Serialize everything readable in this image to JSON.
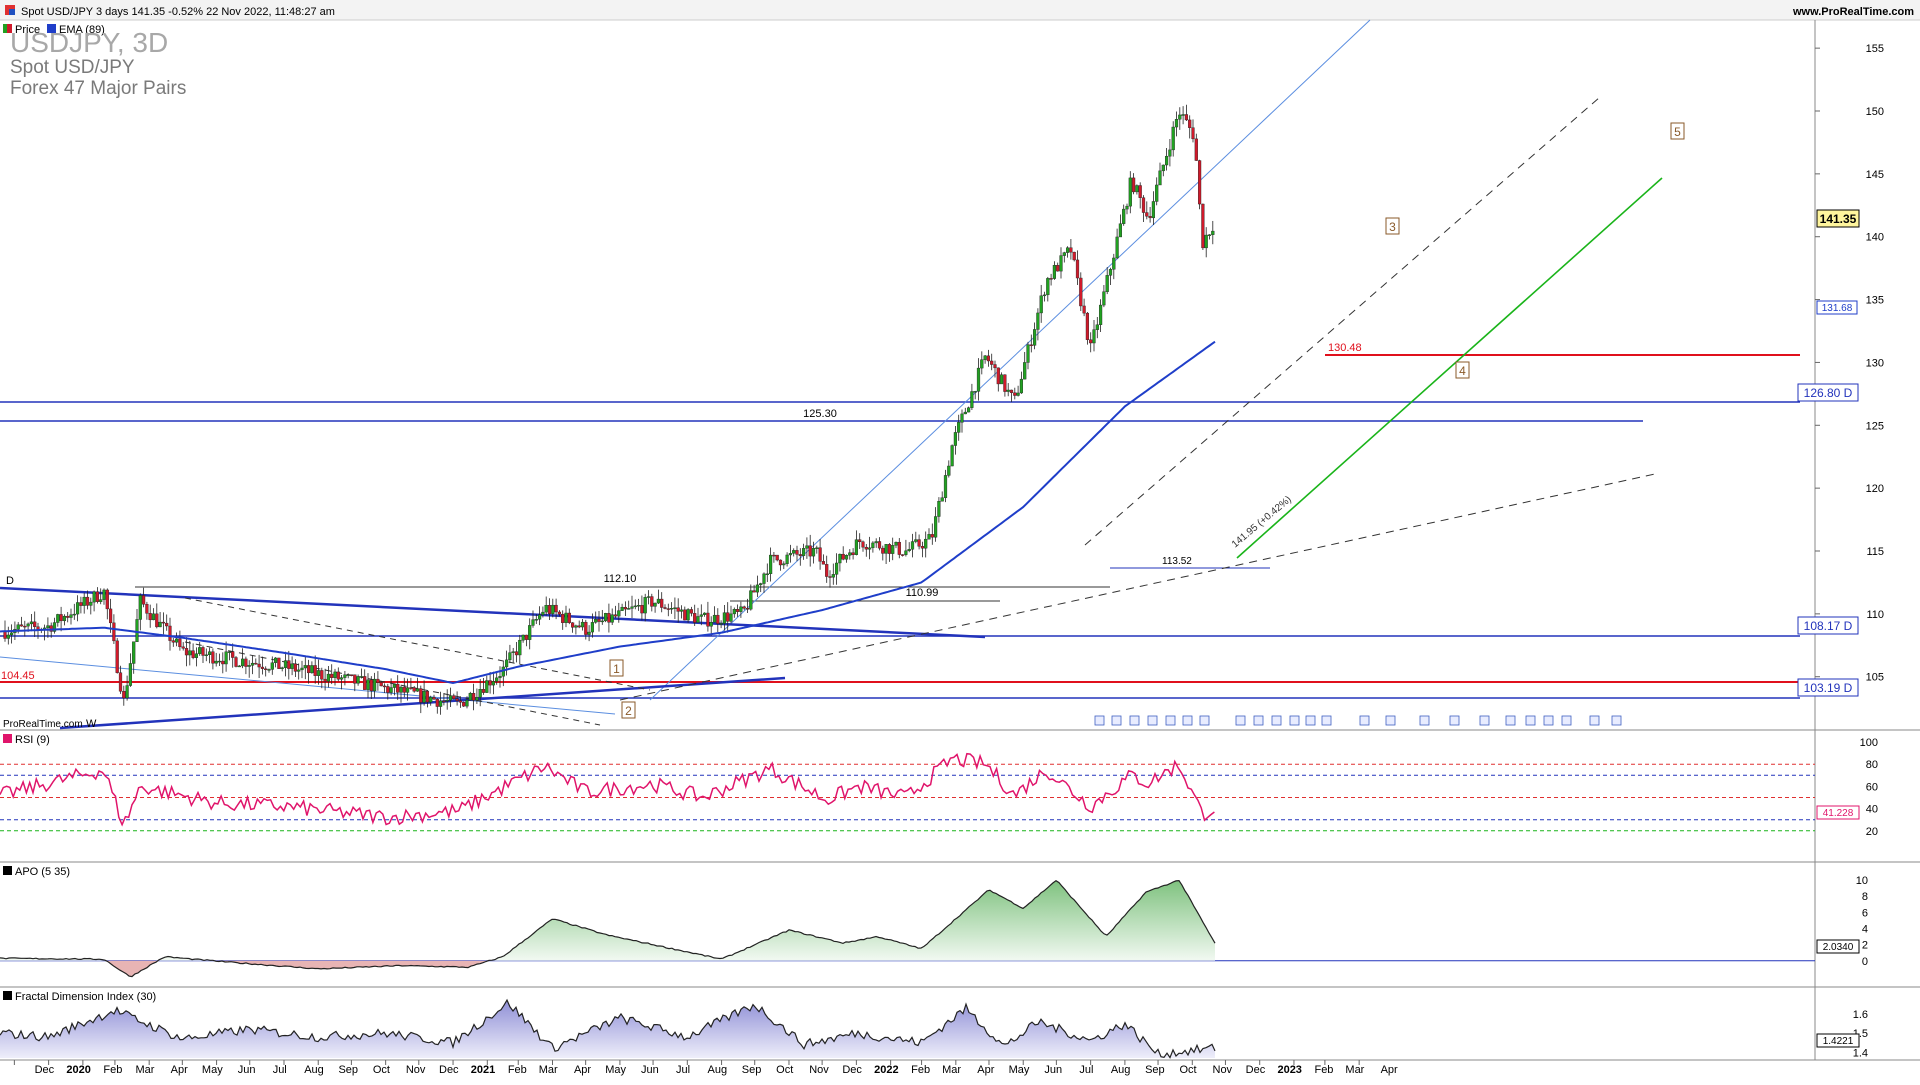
{
  "header": {
    "title": "Spot USD/JPY 3 days 141.35 -0.52% 22 Nov 2022, 11:48:27 am",
    "website": "www.ProRealTime.com",
    "legend_price": "Price",
    "legend_ema": "EMA (89)"
  },
  "watermark": {
    "line1": "USDJPY, 3D",
    "line2": "Spot USD/JPY",
    "line3": "Forex 47 Major Pairs"
  },
  "brand": "ProRealTime.com",
  "colors": {
    "up": "#21a121",
    "down": "#d01a2b",
    "ema": "#1f3ec9",
    "red_line": "#e0101c",
    "blue_line": "#2233bb",
    "trend_green": "#1ab41a",
    "rsi": "#e0156b",
    "apo_fill": "#b5dbb5",
    "apo_neg": "#e8b4b4",
    "fdi_fill": "#b9b9e3"
  },
  "chart_data": [
    {
      "type": "candlestick",
      "title": "USDJPY, 3D",
      "ylim": [
        101,
        157
      ],
      "y_ticks": [
        "155",
        "150",
        "145",
        "140",
        "135",
        "130",
        "125",
        "120",
        "115",
        "110",
        "105"
      ],
      "last_price": "141.35",
      "ema_label": "131.68",
      "ema_anchors": [
        [
          "2019-11-18",
          108.6
        ],
        [
          "2020-02-20",
          108.9
        ],
        [
          "2020-05-01",
          108.1
        ],
        [
          "2020-08-01",
          106.9
        ],
        [
          "2020-11-01",
          105.6
        ],
        [
          "2021-01-01",
          104.5
        ],
        [
          "2021-03-01",
          105.8
        ],
        [
          "2021-06-01",
          107.4
        ],
        [
          "2021-09-01",
          108.5
        ],
        [
          "2021-12-01",
          110.3
        ],
        [
          "2022-03-01",
          112.5
        ],
        [
          "2022-06-01",
          118.5
        ],
        [
          "2022-09-01",
          126.5
        ],
        [
          "2022-11-22",
          131.68
        ]
      ],
      "price_anchors": [
        [
          "2019-11-18",
          108.6
        ],
        [
          "2020-01-01",
          109.0
        ],
        [
          "2020-02-20",
          111.8
        ],
        [
          "2020-03-09",
          103.0
        ],
        [
          "2020-03-24",
          111.0
        ],
        [
          "2020-05-01",
          107.0
        ],
        [
          "2020-08-01",
          105.8
        ],
        [
          "2020-11-05",
          104.0
        ],
        [
          "2021-01-06",
          102.8
        ],
        [
          "2021-02-15",
          105.5
        ],
        [
          "2021-03-25",
          110.5
        ],
        [
          "2021-05-01",
          108.8
        ],
        [
          "2021-07-01",
          111.0
        ],
        [
          "2021-08-15",
          109.5
        ],
        [
          "2021-09-20",
          110.0
        ],
        [
          "2021-10-15",
          114.2
        ],
        [
          "2021-11-25",
          115.0
        ],
        [
          "2021-12-05",
          113.2
        ],
        [
          "2022-01-04",
          115.8
        ],
        [
          "2022-02-15",
          115.0
        ],
        [
          "2022-03-10",
          116.0
        ],
        [
          "2022-03-29",
          123.5
        ],
        [
          "2022-04-28",
          130.5
        ],
        [
          "2022-05-24",
          126.8
        ],
        [
          "2022-06-22",
          136.5
        ],
        [
          "2022-07-14",
          139.0
        ],
        [
          "2022-08-01",
          131.0
        ],
        [
          "2022-09-07",
          144.5
        ],
        [
          "2022-09-22",
          141.5
        ],
        [
          "2022-10-20",
          150.0
        ],
        [
          "2022-11-03",
          148.0
        ],
        [
          "2022-11-10",
          139.5
        ],
        [
          "2022-11-22",
          141.35
        ]
      ],
      "levels": [
        {
          "label": "126.80 D",
          "value": 126.8
        },
        {
          "label": "108.17 D",
          "value": 108.17
        },
        {
          "label": "103.19 D",
          "value": 103.19
        },
        {
          "label": "104.45",
          "value": 104.45
        },
        {
          "label": "130.48",
          "value": 130.48
        },
        {
          "label": "125.30",
          "value": 125.3
        },
        {
          "label": "112.10",
          "value": 112.1
        },
        {
          "label": "110.99",
          "value": 110.99
        },
        {
          "label": "113.52",
          "value": 113.52
        }
      ],
      "annotations": [
        "D",
        "W",
        "1",
        "2",
        "3",
        "4",
        "5",
        "141.95 (+0.42%)"
      ],
      "x_ticks": [
        "Dec",
        "2020",
        "Feb",
        "Mar",
        "Apr",
        "May",
        "Jun",
        "Jul",
        "Aug",
        "Sep",
        "Oct",
        "Nov",
        "Dec",
        "2021",
        "Feb",
        "Mar",
        "Apr",
        "May",
        "Jun",
        "Jul",
        "Aug",
        "Sep",
        "Oct",
        "Nov",
        "Dec",
        "2022",
        "Feb",
        "Mar",
        "Apr",
        "May",
        "Jun",
        "Jul",
        "Aug",
        "Sep",
        "Oct",
        "Nov",
        "Dec",
        "2023",
        "Feb",
        "Mar",
        "Apr"
      ]
    },
    {
      "type": "line",
      "title": "RSI (9)",
      "ylim": [
        0,
        100
      ],
      "y_ticks": [
        "100",
        "80",
        "60",
        "40",
        "20"
      ],
      "last_value": "41.228",
      "anchors": [
        [
          "2019-11-18",
          52
        ],
        [
          "2020-02-20",
          75
        ],
        [
          "2020-03-09",
          25
        ],
        [
          "2020-03-24",
          60
        ],
        [
          "2020-06-01",
          45
        ],
        [
          "2020-08-01",
          42
        ],
        [
          "2020-11-05",
          32
        ],
        [
          "2021-01-06",
          38
        ],
        [
          "2021-03-25",
          78
        ],
        [
          "2021-05-01",
          55
        ],
        [
          "2021-07-01",
          62
        ],
        [
          "2021-08-15",
          50
        ],
        [
          "2021-10-15",
          76
        ],
        [
          "2021-12-05",
          48
        ],
        [
          "2022-01-04",
          60
        ],
        [
          "2022-02-15",
          50
        ],
        [
          "2022-03-29",
          85
        ],
        [
          "2022-04-28",
          80
        ],
        [
          "2022-05-24",
          52
        ],
        [
          "2022-06-22",
          75
        ],
        [
          "2022-08-01",
          42
        ],
        [
          "2022-09-07",
          70
        ],
        [
          "2022-09-22",
          63
        ],
        [
          "2022-10-20",
          80
        ],
        [
          "2022-11-10",
          35
        ],
        [
          "2022-11-22",
          41.228
        ]
      ]
    },
    {
      "type": "area",
      "title": "APO (5 35)",
      "ylim": [
        -3,
        11
      ],
      "y_ticks": [
        "10",
        "8",
        "6",
        "4",
        "2",
        "0"
      ],
      "last_value": "2.0340",
      "anchors": [
        [
          "2019-11-18",
          0.3
        ],
        [
          "2020-02-20",
          0.2
        ],
        [
          "2020-03-15",
          -2.0
        ],
        [
          "2020-04-15",
          0.5
        ],
        [
          "2020-06-15",
          -0.2
        ],
        [
          "2020-09-01",
          -1.0
        ],
        [
          "2020-11-15",
          -0.6
        ],
        [
          "2021-01-15",
          -0.8
        ],
        [
          "2021-02-15",
          0.5
        ],
        [
          "2021-04-01",
          5.2
        ],
        [
          "2021-05-20",
          3.2
        ],
        [
          "2021-07-01",
          2.0
        ],
        [
          "2021-09-01",
          0.2
        ],
        [
          "2021-11-01",
          3.8
        ],
        [
          "2021-12-20",
          2.2
        ],
        [
          "2022-01-20",
          3.0
        ],
        [
          "2022-03-01",
          1.5
        ],
        [
          "2022-05-01",
          8.8
        ],
        [
          "2022-06-01",
          6.5
        ],
        [
          "2022-07-01",
          10.0
        ],
        [
          "2022-08-15",
          3.0
        ],
        [
          "2022-09-20",
          8.5
        ],
        [
          "2022-10-20",
          10.0
        ],
        [
          "2022-11-22",
          2.034
        ]
      ]
    },
    {
      "type": "area",
      "title": "Fractal Dimension Index (30)",
      "ylim": [
        1.37,
        1.7
      ],
      "y_ticks": [
        "1.6",
        "1.5",
        "1.4"
      ],
      "last_value": "1.4221",
      "anchors": [
        [
          "2019-11-18",
          1.5
        ],
        [
          "2020-01-01",
          1.48
        ],
        [
          "2020-03-01",
          1.62
        ],
        [
          "2020-05-01",
          1.47
        ],
        [
          "2020-07-01",
          1.52
        ],
        [
          "2020-09-01",
          1.48
        ],
        [
          "2020-11-01",
          1.5
        ],
        [
          "2021-01-01",
          1.45
        ],
        [
          "2021-02-20",
          1.66
        ],
        [
          "2021-04-01",
          1.42
        ],
        [
          "2021-06-01",
          1.58
        ],
        [
          "2021-08-01",
          1.48
        ],
        [
          "2021-10-01",
          1.65
        ],
        [
          "2021-11-15",
          1.44
        ],
        [
          "2022-01-01",
          1.5
        ],
        [
          "2022-03-01",
          1.45
        ],
        [
          "2022-04-10",
          1.63
        ],
        [
          "2022-05-15",
          1.43
        ],
        [
          "2022-06-15",
          1.56
        ],
        [
          "2022-08-01",
          1.46
        ],
        [
          "2022-09-01",
          1.55
        ],
        [
          "2022-10-01",
          1.39
        ],
        [
          "2022-11-22",
          1.4221
        ]
      ]
    }
  ]
}
